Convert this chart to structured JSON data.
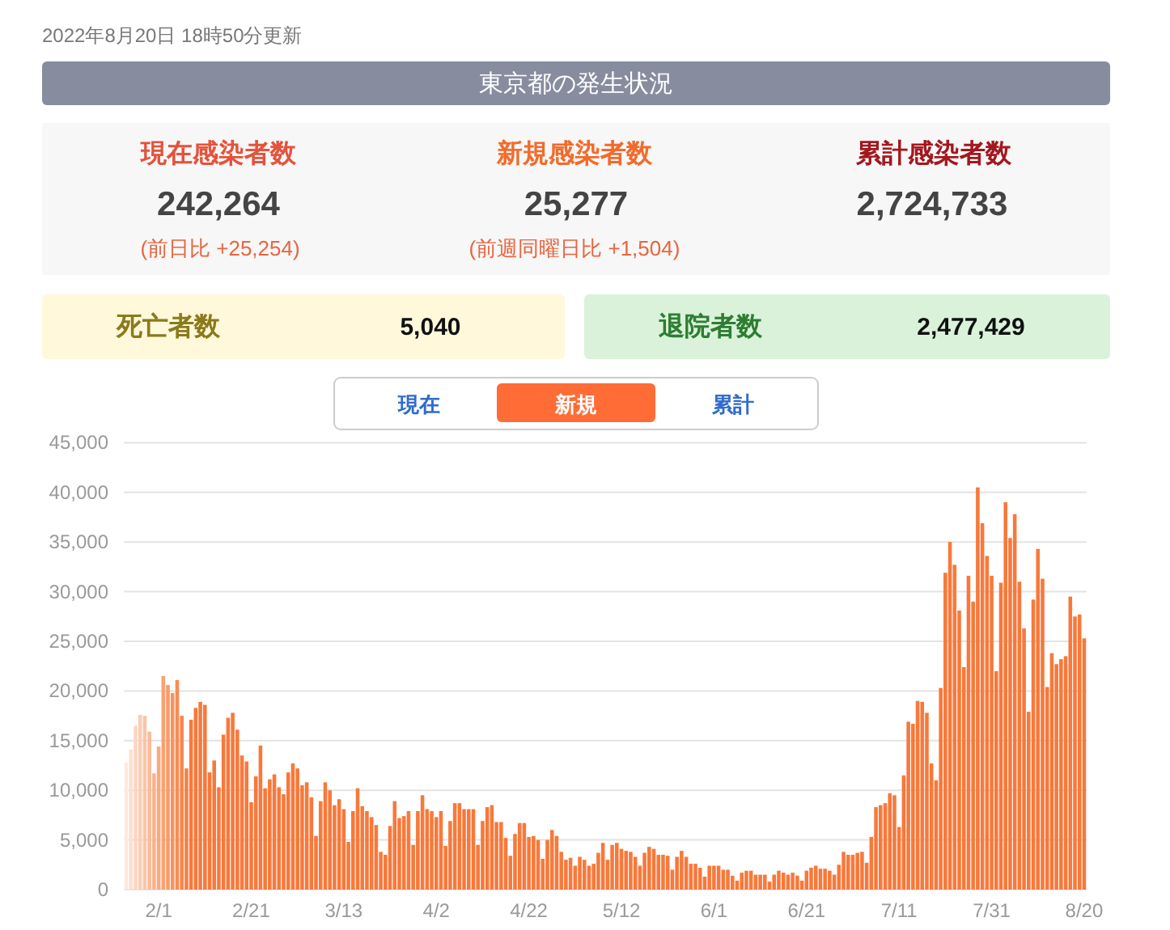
{
  "chart_data": [
    {
      "type": "other",
      "title": "東京都の発生状況",
      "subtitle": "2022年8月20日 18時50分更新",
      "annotations": [
        "現在感染者数",
        "242,264",
        "(前日比 +25,254)",
        "新規感染者数",
        "25,277",
        "(前週同曜日比 +1,504)",
        "累計感染者数",
        "2,724,733",
        "死亡者数",
        "5,040",
        "退院者数",
        "2,477,429",
        "現在",
        "新規",
        "累計"
      ]
    },
    {
      "type": "bar",
      "categories": [
        null,
        null,
        null,
        null,
        null,
        null,
        null,
        "2/1",
        null,
        null,
        null,
        null,
        null,
        null,
        null,
        null,
        null,
        null,
        null,
        null,
        null,
        null,
        null,
        null,
        null,
        null,
        null,
        "2/21",
        null,
        null,
        null,
        null,
        null,
        null,
        null,
        null,
        null,
        null,
        null,
        null,
        null,
        null,
        null,
        null,
        null,
        null,
        null,
        "3/13",
        null,
        null,
        null,
        null,
        null,
        null,
        null,
        null,
        null,
        null,
        null,
        null,
        null,
        null,
        null,
        null,
        null,
        null,
        null,
        "4/2",
        null,
        null,
        null,
        null,
        null,
        null,
        null,
        null,
        null,
        null,
        null,
        null,
        null,
        null,
        null,
        null,
        null,
        null,
        null,
        "4/22",
        null,
        null,
        null,
        null,
        null,
        null,
        null,
        null,
        null,
        null,
        null,
        null,
        null,
        null,
        null,
        null,
        null,
        null,
        null,
        "5/12",
        null,
        null,
        null,
        null,
        null,
        null,
        null,
        null,
        null,
        null,
        null,
        null,
        null,
        null,
        null,
        null,
        null,
        null,
        null,
        "6/1",
        null,
        null,
        null,
        null,
        null,
        null,
        null,
        null,
        null,
        null,
        null,
        null,
        null,
        null,
        null,
        null,
        null,
        null,
        null,
        "6/21",
        null,
        null,
        null,
        null,
        null,
        null,
        null,
        null,
        null,
        null,
        null,
        null,
        null,
        null,
        null,
        null,
        null,
        null,
        null,
        "7/11",
        null,
        null,
        null,
        null,
        null,
        null,
        null,
        null,
        null,
        null,
        null,
        null,
        null,
        null,
        null,
        null,
        null,
        null,
        null,
        "7/31",
        null,
        null,
        null,
        null,
        null,
        null,
        null,
        null,
        null,
        null,
        null,
        null,
        null,
        null,
        null,
        null,
        null,
        null,
        null,
        "8/20"
      ],
      "values": [
        12800,
        14100,
        16500,
        17600,
        17500,
        15900,
        11700,
        14400,
        21500,
        20600,
        19800,
        21100,
        17500,
        12200,
        17100,
        18300,
        18900,
        18600,
        11800,
        13000,
        10300,
        15600,
        17300,
        17800,
        16100,
        13500,
        12900,
        8800,
        11400,
        14500,
        10200,
        11100,
        11600,
        10300,
        9600,
        11800,
        12700,
        12200,
        10500,
        10800,
        9300,
        5400,
        8900,
        10800,
        10000,
        8500,
        9100,
        8100,
        4800,
        7900,
        10200,
        8400,
        7900,
        7300,
        6500,
        3800,
        3500,
        6400,
        8900,
        7200,
        7400,
        7900,
        4500,
        7900,
        9500,
        8100,
        7900,
        7300,
        7900,
        4400,
        6900,
        8700,
        8700,
        8100,
        8100,
        8100,
        4500,
        6900,
        8300,
        8500,
        6800,
        6800,
        5200,
        3400,
        5600,
        6700,
        6700,
        5300,
        5400,
        5000,
        3100,
        5000,
        6000,
        5400,
        3800,
        3000,
        3200,
        2400,
        3300,
        3000,
        2400,
        2600,
        3700,
        4700,
        3000,
        4500,
        4700,
        4100,
        3900,
        3800,
        3300,
        2400,
        3700,
        4300,
        4100,
        3500,
        3500,
        3400,
        2000,
        3300,
        3900,
        3300,
        2600,
        2600,
        2200,
        1300,
        2400,
        2400,
        2400,
        2000,
        2000,
        1400,
        900,
        1700,
        1900,
        1900,
        1500,
        1500,
        1500,
        800,
        1500,
        1900,
        1700,
        1500,
        1700,
        1400,
        900,
        1900,
        2200,
        2400,
        2100,
        2100,
        1900,
        1500,
        2500,
        3800,
        3500,
        3500,
        3700,
        3800,
        2700,
        5300,
        8300,
        8500,
        8700,
        9700,
        9500,
        6300,
        11500,
        16900,
        16700,
        19000,
        18900,
        17800,
        12700,
        11000,
        20300,
        31900,
        35000,
        32700,
        28100,
        22400,
        31600,
        29000,
        40500,
        36900,
        33600,
        31600,
        22000,
        30900,
        39000,
        35400,
        37800,
        31000,
        26300,
        17900,
        29200,
        34300,
        31300,
        20400,
        23800,
        22700,
        23200,
        23500,
        29500,
        27500,
        27700,
        25300
      ],
      "colors": [
        "#fde9de",
        "#fce0d0",
        "#fcd6c2",
        "#fbcdb4",
        "#fbc4a7",
        "#fabb99",
        "#fab28c",
        "#f9a97f",
        "#f9a173",
        "#f89a68",
        "#f8935e",
        "#f88c55",
        "#f8864c",
        "#f78044",
        "#f7793b",
        "#f7793b",
        "#f7793b",
        "#f7793b",
        "#f7793b",
        "#f7793b",
        "#f7793b",
        "#f7793b",
        "#f7793b",
        "#f7793b",
        "#f7793b",
        "#f7793b",
        "#f7793b",
        "#f7793b",
        "#f7793b",
        "#f7793b",
        "#f7793b",
        "#f7793b",
        "#f7793b",
        "#f7793b",
        "#f7793b",
        "#f7793b",
        "#f7793b",
        "#f7793b",
        "#f7793b",
        "#f7793b",
        "#f7793b",
        "#f7793b",
        "#f7793b",
        "#f7793b",
        "#f7793b",
        "#f7793b",
        "#f7793b",
        "#f7793b",
        "#f7793b",
        "#f7793b",
        "#f7793b",
        "#f7793b",
        "#f7793b",
        "#f7793b",
        "#f7793b",
        "#f7793b",
        "#f7793b",
        "#f7793b",
        "#f7793b",
        "#f7793b",
        "#f7793b",
        "#f7793b",
        "#f7793b",
        "#f7793b",
        "#f7793b",
        "#f7793b",
        "#f7793b",
        "#f7793b",
        "#f7793b",
        "#f7793b",
        "#f7793b",
        "#f7793b",
        "#f7793b",
        "#f7793b",
        "#f7793b",
        "#f7793b",
        "#f7793b",
        "#f7793b",
        "#f7793b",
        "#f7793b",
        "#f7793b",
        "#f7793b",
        "#f7793b",
        "#f7793b",
        "#f7793b",
        "#f7793b",
        "#f7793b",
        "#f7793b",
        "#f7793b",
        "#f7793b",
        "#f7793b",
        "#f7793b",
        "#f7793b",
        "#f7793b",
        "#f7793b",
        "#f7793b",
        "#f7793b",
        "#f7793b",
        "#f7793b",
        "#f7793b",
        "#f7793b",
        "#f7793b",
        "#f7793b",
        "#f7793b",
        "#f7793b",
        "#f7793b",
        "#f7793b",
        "#f7793b",
        "#f7793b",
        "#f7793b",
        "#f7793b",
        "#f7793b",
        "#f7793b",
        "#f7793b",
        "#f7793b",
        "#f7793b",
        "#f7793b",
        "#f7793b",
        "#f7793b",
        "#f7793b",
        "#f7793b",
        "#f7793b",
        "#f7793b",
        "#f7793b",
        "#f7793b",
        "#f7793b",
        "#f7793b",
        "#f7793b",
        "#f7793b",
        "#f7793b",
        "#f7793b",
        "#f7793b",
        "#f7793b",
        "#f7793b",
        "#f7793b",
        "#f7793b",
        "#f7793b",
        "#f7793b",
        "#f7793b",
        "#f7793b",
        "#f7793b",
        "#f7793b",
        "#f7793b",
        "#f7793b",
        "#f7793b",
        "#f7793b",
        "#f7793b",
        "#f7793b",
        "#f7793b",
        "#f7793b",
        "#f7793b",
        "#f7793b",
        "#f7793b",
        "#f7793b",
        "#f7793b",
        "#f7793b",
        "#f7793b",
        "#f7793b",
        "#f7793b",
        "#f7793b",
        "#f7793b",
        "#f7793b",
        "#f7793b",
        "#f7793b",
        "#f7793b",
        "#f7793b",
        "#f7793b",
        "#f7793b",
        "#f7793b",
        "#f7793b",
        "#f7793b",
        "#f7793b",
        "#f7793b",
        "#f7793b",
        "#f7793b",
        "#f7793b",
        "#f7793b",
        "#f7793b",
        "#f7793b",
        "#f7793b",
        "#f7793b",
        "#f7793b",
        "#f7793b",
        "#f7793b",
        "#f7793b",
        "#f7793b",
        "#f7793b",
        "#f7793b",
        "#f7793b",
        "#f7793b",
        "#f7793b",
        "#f7793b",
        "#f7793b",
        "#f7793b",
        "#f7793b",
        "#f7793b",
        "#f7793b",
        "#f7793b",
        "#f7793b",
        "#f7793b",
        "#f7793b",
        "#f7793b",
        "#f7793b",
        "#f7793b",
        "#f7793b",
        "#f7793b",
        "#f7793b",
        "#f7793b"
      ],
      "ylim": [
        0,
        45000
      ],
      "yticks": [
        0,
        {
          "value": 5000,
          "label": "5,000"
        },
        {
          "value": 10000,
          "label": "10,000"
        },
        {
          "value": 15000,
          "label": "15,000"
        },
        {
          "value": 20000,
          "label": "20,000"
        },
        {
          "value": 25000,
          "label": "25,000"
        },
        {
          "value": 30000,
          "label": "30,000"
        },
        {
          "value": 35000,
          "label": "35,000"
        },
        {
          "value": 40000,
          "label": "40,000"
        },
        {
          "value": 45000,
          "label": "45,000"
        }
      ],
      "grid": "y"
    }
  ]
}
